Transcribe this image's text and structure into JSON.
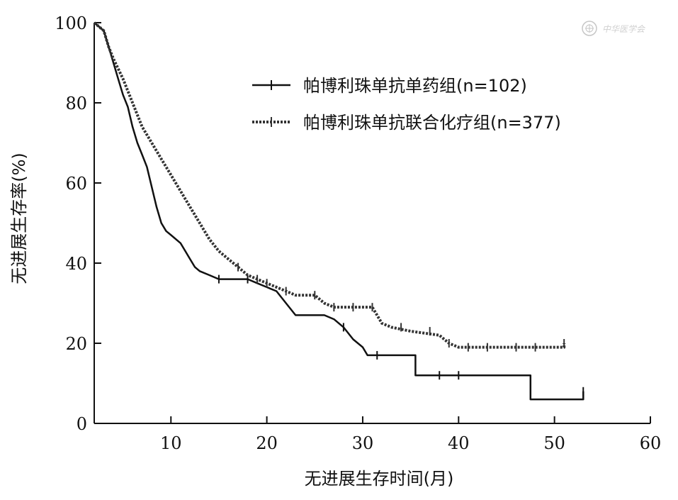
{
  "chart_data": {
    "type": "line",
    "xlabel": "无进展生存时间(月)",
    "ylabel": "无进展生存率(%)",
    "xlim": [
      2,
      60
    ],
    "ylim": [
      0,
      100
    ],
    "x_ticks": [
      10,
      20,
      30,
      40,
      50,
      60
    ],
    "y_ticks": [
      0,
      20,
      40,
      60,
      80,
      100
    ],
    "x_tick_labels": [
      "10",
      "20",
      "30",
      "40",
      "50",
      "60"
    ],
    "y_tick_labels": [
      "0",
      "20",
      "40",
      "60",
      "80",
      "100"
    ],
    "grid": false,
    "legend_position": "top-right",
    "series": [
      {
        "name": "帕博利珠单抗单药组(n=102)",
        "style": "solid",
        "color": "#111111",
        "points": [
          [
            2,
            100
          ],
          [
            3,
            98
          ],
          [
            3.5,
            94
          ],
          [
            4,
            90
          ],
          [
            4.5,
            86
          ],
          [
            5,
            82
          ],
          [
            5.5,
            79
          ],
          [
            6,
            74
          ],
          [
            6.5,
            70
          ],
          [
            7,
            67
          ],
          [
            7.5,
            64
          ],
          [
            8,
            59
          ],
          [
            8.5,
            54
          ],
          [
            9,
            50
          ],
          [
            9.5,
            48
          ],
          [
            10,
            47
          ],
          [
            11,
            45
          ],
          [
            11.5,
            43
          ],
          [
            12,
            41
          ],
          [
            12.5,
            39
          ],
          [
            13,
            38
          ],
          [
            14,
            37
          ],
          [
            15,
            36
          ],
          [
            17,
            36
          ],
          [
            18,
            36
          ],
          [
            19,
            35
          ],
          [
            20,
            34
          ],
          [
            21,
            33
          ],
          [
            22,
            30
          ],
          [
            23,
            27
          ],
          [
            26,
            27
          ],
          [
            27,
            26
          ],
          [
            28,
            24
          ],
          [
            29,
            21
          ],
          [
            30,
            19
          ],
          [
            30.5,
            17
          ],
          [
            35.5,
            17
          ],
          [
            35.5,
            12
          ],
          [
            40,
            12
          ],
          [
            47.5,
            12
          ],
          [
            47.5,
            6
          ],
          [
            53,
            6
          ],
          [
            53,
            8
          ]
        ],
        "censor_x": [
          15,
          18,
          28,
          31.5,
          38,
          40,
          53
        ]
      },
      {
        "name": "帕博利珠单抗联合化疗组(n=377)",
        "style": "dotted",
        "color": "#333333",
        "points": [
          [
            2,
            100
          ],
          [
            3,
            98
          ],
          [
            3.5,
            94
          ],
          [
            4,
            91
          ],
          [
            5,
            86
          ],
          [
            6,
            80
          ],
          [
            7,
            74
          ],
          [
            8,
            70
          ],
          [
            9,
            66
          ],
          [
            10,
            62
          ],
          [
            11,
            58
          ],
          [
            12,
            54
          ],
          [
            13,
            50
          ],
          [
            14,
            46
          ],
          [
            15,
            43
          ],
          [
            16,
            41
          ],
          [
            17,
            39
          ],
          [
            18,
            37
          ],
          [
            19,
            36
          ],
          [
            20,
            35
          ],
          [
            21,
            34
          ],
          [
            22,
            33
          ],
          [
            23,
            32
          ],
          [
            25,
            32
          ],
          [
            26,
            30
          ],
          [
            27,
            29
          ],
          [
            28,
            29
          ],
          [
            31,
            29
          ],
          [
            32,
            25
          ],
          [
            33,
            24
          ],
          [
            35,
            23
          ],
          [
            38,
            22
          ],
          [
            39,
            20
          ],
          [
            40,
            19
          ],
          [
            45,
            19
          ],
          [
            51,
            19
          ],
          [
            51,
            20
          ]
        ],
        "censor_x": [
          17,
          19,
          20,
          22,
          25,
          27,
          29,
          31,
          34,
          37,
          39,
          41,
          43,
          46,
          48,
          51
        ]
      }
    ]
  },
  "watermark": "中华医学会"
}
